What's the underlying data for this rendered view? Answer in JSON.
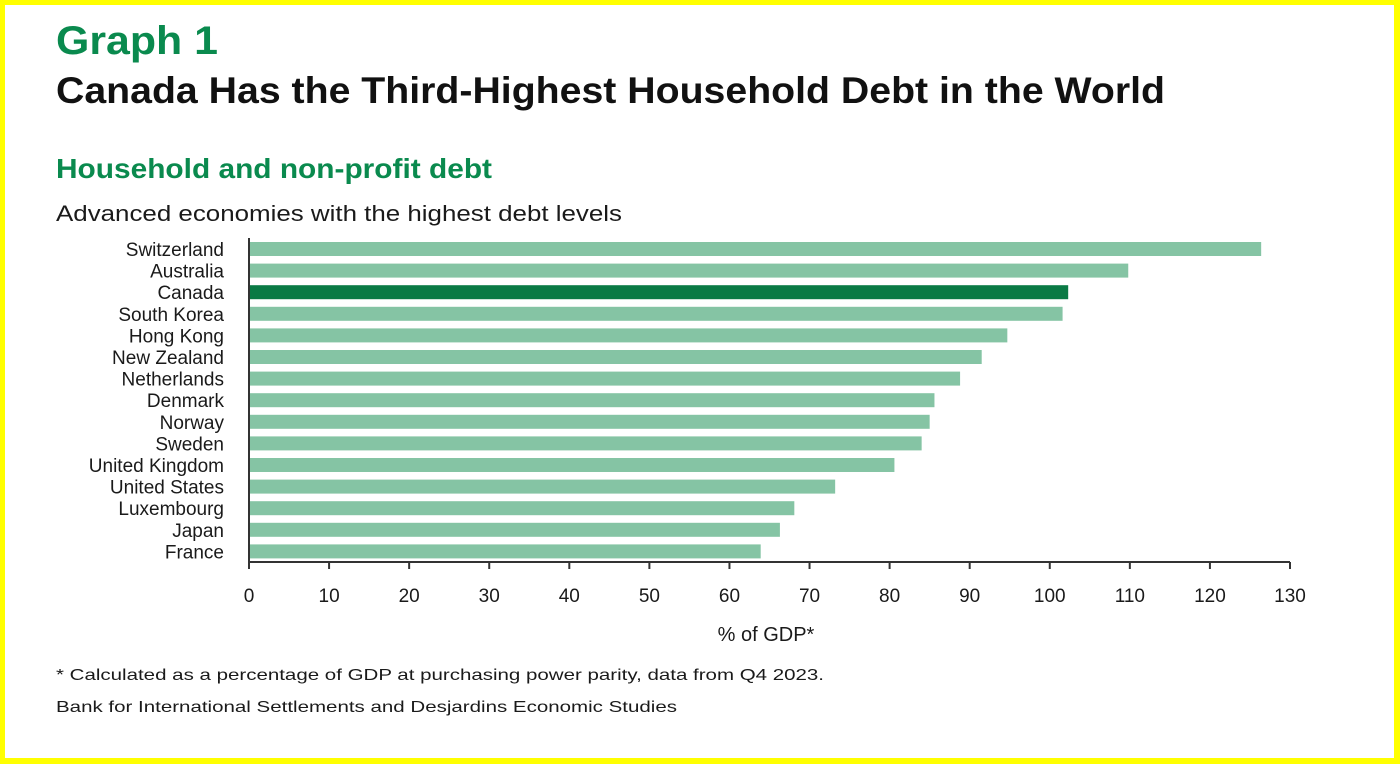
{
  "header": {
    "graph_label": "Graph 1",
    "title": "Canada Has the Third-Highest Household Debt in the World",
    "subtitle": "Household and non-profit debt",
    "description": "Advanced economies with the highest debt levels"
  },
  "footer": {
    "note": "* Calculated as a percentage of GDP at purchasing power parity, data from Q4 2023.",
    "source": "Bank for International Settlements and Desjardins Economic Studies"
  },
  "colors": {
    "frame": "#ffff00",
    "accent_green": "#0a8a4e",
    "highlight_bar": "#0a7a45",
    "bar": "#85c4a4",
    "axis": "#333333"
  },
  "chart_data": {
    "type": "bar",
    "orientation": "horizontal",
    "title": "Household and non-profit debt",
    "subtitle": "Advanced economies with the highest debt levels",
    "xlabel": "% of GDP*",
    "ylabel": "",
    "xlim": [
      0,
      130
    ],
    "xticks": [
      0,
      10,
      20,
      30,
      40,
      50,
      60,
      70,
      80,
      90,
      100,
      110,
      120,
      130
    ],
    "grid": false,
    "highlight": "Canada",
    "categories": [
      "Switzerland",
      "Australia",
      "Canada",
      "South Korea",
      "Hong Kong",
      "New Zealand",
      "Netherlands",
      "Denmark",
      "Norway",
      "Sweden",
      "United Kingdom",
      "United States",
      "Luxembourg",
      "Japan",
      "France"
    ],
    "values": [
      126.4,
      109.8,
      102.3,
      101.6,
      94.7,
      91.5,
      88.8,
      85.6,
      85.0,
      84.0,
      80.6,
      73.2,
      68.1,
      66.3,
      63.9
    ]
  }
}
